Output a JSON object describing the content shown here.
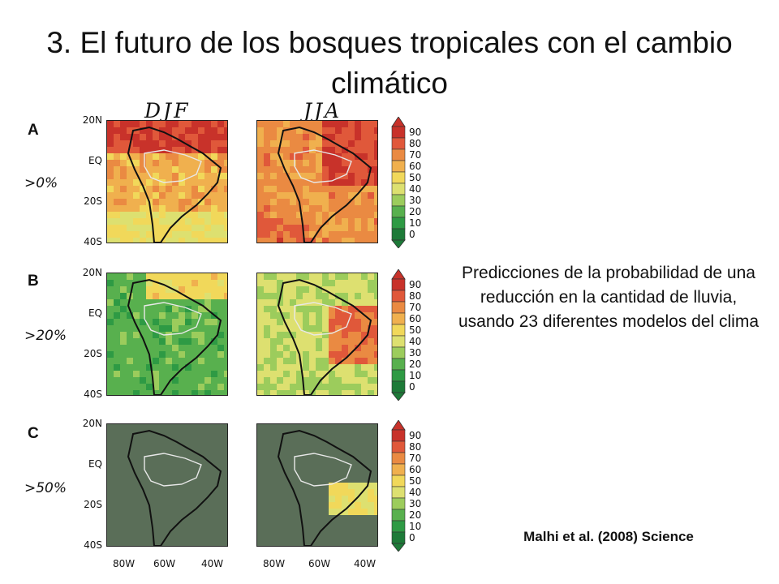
{
  "slide": {
    "title": "3. El futuro de los bosques tropicales con el cambio climático",
    "caption": "Predicciones de la probabilidad de una reducción en la cantidad de lluvia, usando 23 diferentes modelos del clima",
    "citation": "Malhi et al. (2008) Science"
  },
  "figure": {
    "columns": [
      "DJF",
      "JJA"
    ],
    "rows": [
      {
        "letter": "A",
        "threshold": ">0%"
      },
      {
        "letter": "B",
        "threshold": ">20%"
      },
      {
        "letter": "C",
        "threshold": ">50%"
      }
    ],
    "lat_labels": [
      "20N",
      "EQ",
      "20S",
      "40S"
    ],
    "lon_labels": [
      "80W",
      "60W",
      "40W"
    ],
    "colorbar_labels": [
      "90",
      "80",
      "70",
      "60",
      "50",
      "40",
      "30",
      "20",
      "10",
      "0"
    ],
    "colorbar_colors": [
      "#c8322a",
      "#e0583a",
      "#ea8a42",
      "#f0b04e",
      "#f1d85a",
      "#dde070",
      "#9ccc5c",
      "#58b04e",
      "#2e9a44",
      "#1d7a38"
    ],
    "ocean_color": "#5a6e58",
    "coast_color": "#111111",
    "amazon_outline_color": "#e8e8e8"
  }
}
